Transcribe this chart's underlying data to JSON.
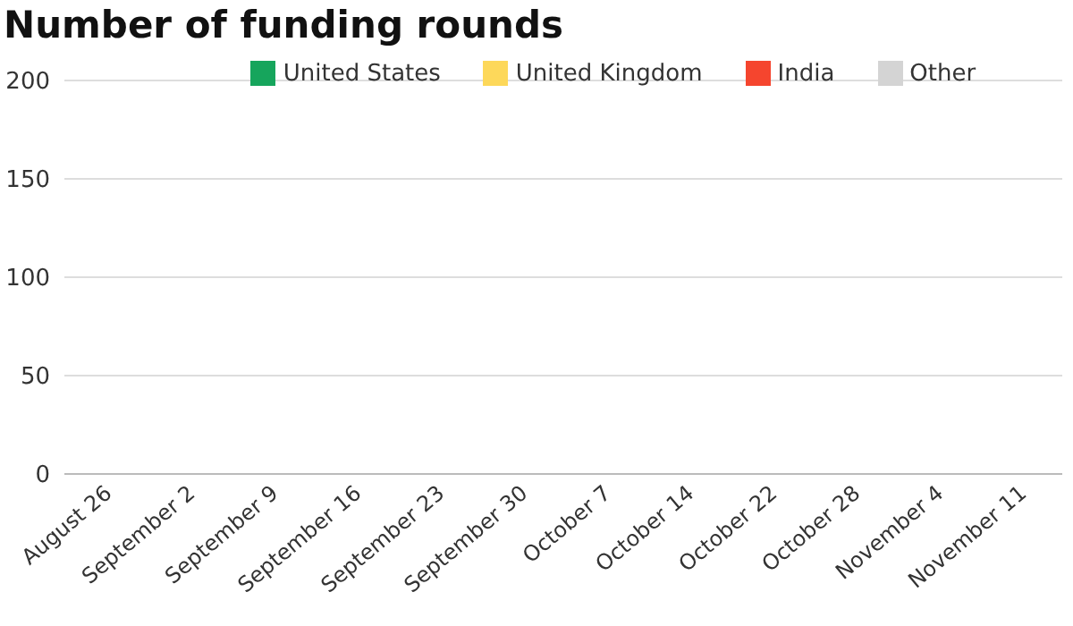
{
  "chart_data": {
    "type": "bar",
    "title": "Number of funding rounds",
    "categories": [
      "August 26",
      "September 2",
      "September 9",
      "September 16",
      "September 23",
      "September 30",
      "October 7",
      "October 14",
      "October 22",
      "October 28",
      "November 4",
      "November 11"
    ],
    "series": [
      {
        "name": "United States",
        "color": "#16a55c",
        "values": [
          0,
          0,
          0,
          0,
          0,
          0,
          0,
          0,
          0,
          0,
          0,
          0
        ]
      },
      {
        "name": "United Kingdom",
        "color": "#fdd85a",
        "values": [
          0,
          0,
          0,
          0,
          0,
          0,
          0,
          0,
          0,
          0,
          0,
          0
        ]
      },
      {
        "name": "India",
        "color": "#f5452e",
        "values": [
          0,
          0,
          0,
          0,
          0,
          0,
          0,
          0,
          0,
          0,
          0,
          0
        ]
      },
      {
        "name": "Other",
        "color": "#d4d4d4",
        "values": [
          0,
          0,
          0,
          0,
          0,
          0,
          0,
          0,
          0,
          0,
          0,
          0
        ]
      }
    ],
    "ylim": [
      0,
      200
    ],
    "yticks": [
      0,
      50,
      100,
      150,
      200
    ],
    "grid": "y",
    "legend": "top"
  }
}
